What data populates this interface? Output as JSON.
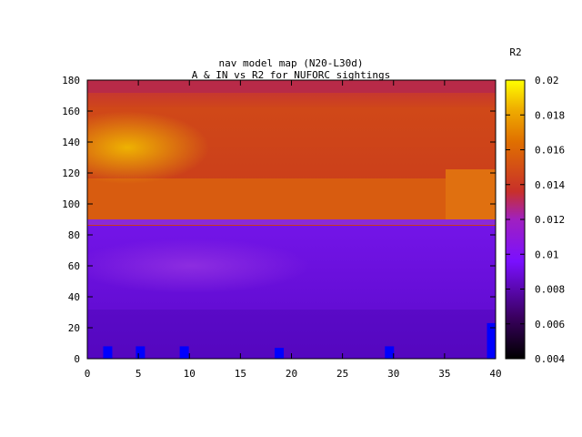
{
  "chart_data": {
    "type": "heatmap",
    "title": "nav model map (N20-L30d)",
    "subtitle": "A & IN vs R2 for NUFORC sightings",
    "xlabel": "",
    "ylabel": "",
    "xlim": [
      0,
      40
    ],
    "ylim": [
      0,
      180
    ],
    "xticks": [
      "0",
      "5",
      "10",
      "15",
      "20",
      "25",
      "30",
      "35",
      "40"
    ],
    "yticks": [
      "0",
      "20",
      "40",
      "60",
      "80",
      "100",
      "120",
      "140",
      "160",
      "180"
    ],
    "colorbar": {
      "title": "R2",
      "range": [
        0.004,
        0.02
      ],
      "ticks": [
        "0.004",
        "0.006",
        "0.008",
        "0.01",
        "0.012",
        "0.014",
        "0.016",
        "0.018",
        "0.02"
      ],
      "palette": "black-purple-red-orange-yellow"
    },
    "bands": [
      {
        "y_from": 172,
        "y_to": 180,
        "value": 0.0125
      },
      {
        "y_from": 130,
        "y_to": 172,
        "value": 0.0145
      },
      {
        "y_from": 120,
        "y_to": 130,
        "value": 0.0135
      },
      {
        "y_from": 88,
        "y_to": 120,
        "value": 0.0148
      },
      {
        "y_from": 60,
        "y_to": 88,
        "value": 0.0088
      },
      {
        "y_from": 0,
        "y_to": 60,
        "value": 0.0075
      }
    ],
    "hotspots": [
      {
        "x": 4,
        "y": 134,
        "value": 0.0175
      },
      {
        "x": 10,
        "y": 60,
        "value": 0.0095
      }
    ],
    "markers": [
      {
        "x": 2,
        "y_max": 8
      },
      {
        "x": 5.2,
        "y_max": 8
      },
      {
        "x": 9.5,
        "y_max": 8
      },
      {
        "x": 18.8,
        "y_max": 7
      },
      {
        "x": 29.6,
        "y_max": 8
      },
      {
        "x": 39.6,
        "y_max": 23
      }
    ],
    "marker_color": "#0000ff"
  }
}
